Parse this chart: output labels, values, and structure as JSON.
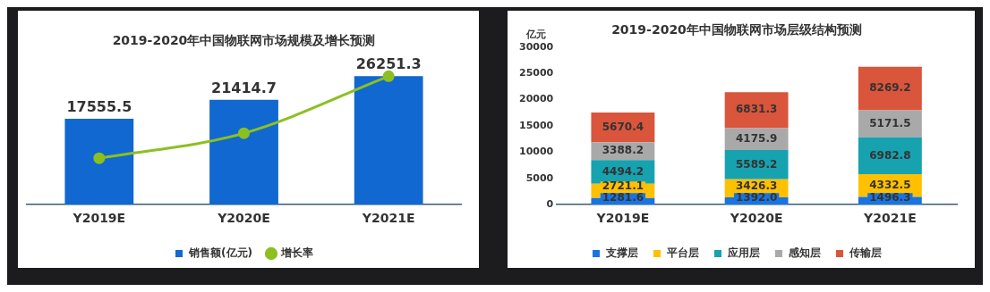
{
  "chart_data": [
    {
      "type": "bar",
      "title": "2019-2020年中国物联网市场规模及增长预测",
      "categories": [
        "Y2019E",
        "Y2020E",
        "Y2021E"
      ],
      "series": [
        {
          "name": "销售额(亿元)",
          "color": "#1068d0",
          "values": [
            17555.5,
            21414.7,
            26251.3
          ],
          "value_labels": [
            "17555.5",
            "21414.7",
            "26251.3"
          ]
        },
        {
          "name": "增长率",
          "type": "line",
          "color": "#8cc020",
          "values": [
            9500,
            14600,
            26250
          ],
          "marker": "circle"
        }
      ],
      "tick_labels": "x",
      "grid": false,
      "legend": "bottom"
    },
    {
      "type": "bar",
      "title": "2019-2020年中国物联网市场层级结构预测",
      "ylabel": "亿元",
      "categories": [
        "Y2019E",
        "Y2020E",
        "Y2021E"
      ],
      "stacked": true,
      "series": [
        {
          "name": "支撑层",
          "color": "#1a74e0",
          "values": [
            1281.6,
            1392.0,
            1496.3
          ],
          "value_labels": [
            "1281.6",
            "1392.0",
            "1496.3"
          ]
        },
        {
          "name": "平台层",
          "color": "#ffc000",
          "values": [
            2721.1,
            3426.3,
            4332.5
          ],
          "value_labels": [
            "2721.1",
            "3426.3",
            "4332.5"
          ]
        },
        {
          "name": "应用层",
          "color": "#17a2b0",
          "values": [
            4494.2,
            5589.2,
            6982.8
          ],
          "value_labels": [
            "4494.2",
            "5589.2",
            "6982.8"
          ]
        },
        {
          "name": "感知层",
          "color": "#a9a9a9",
          "values": [
            3388.2,
            4175.9,
            5171.5
          ],
          "value_labels": [
            "3388.2",
            "4175.9",
            "5171.5"
          ]
        },
        {
          "name": "传输层",
          "color": "#d9553b",
          "values": [
            5670.4,
            6831.3,
            8269.2
          ],
          "value_labels": [
            "5670.4",
            "6831.3",
            "8269.2"
          ]
        }
      ],
      "ylim": [
        0,
        30000
      ],
      "yticks": [
        0,
        5000,
        10000,
        15000,
        20000,
        25000,
        30000
      ],
      "grid": false,
      "legend": "bottom"
    }
  ]
}
